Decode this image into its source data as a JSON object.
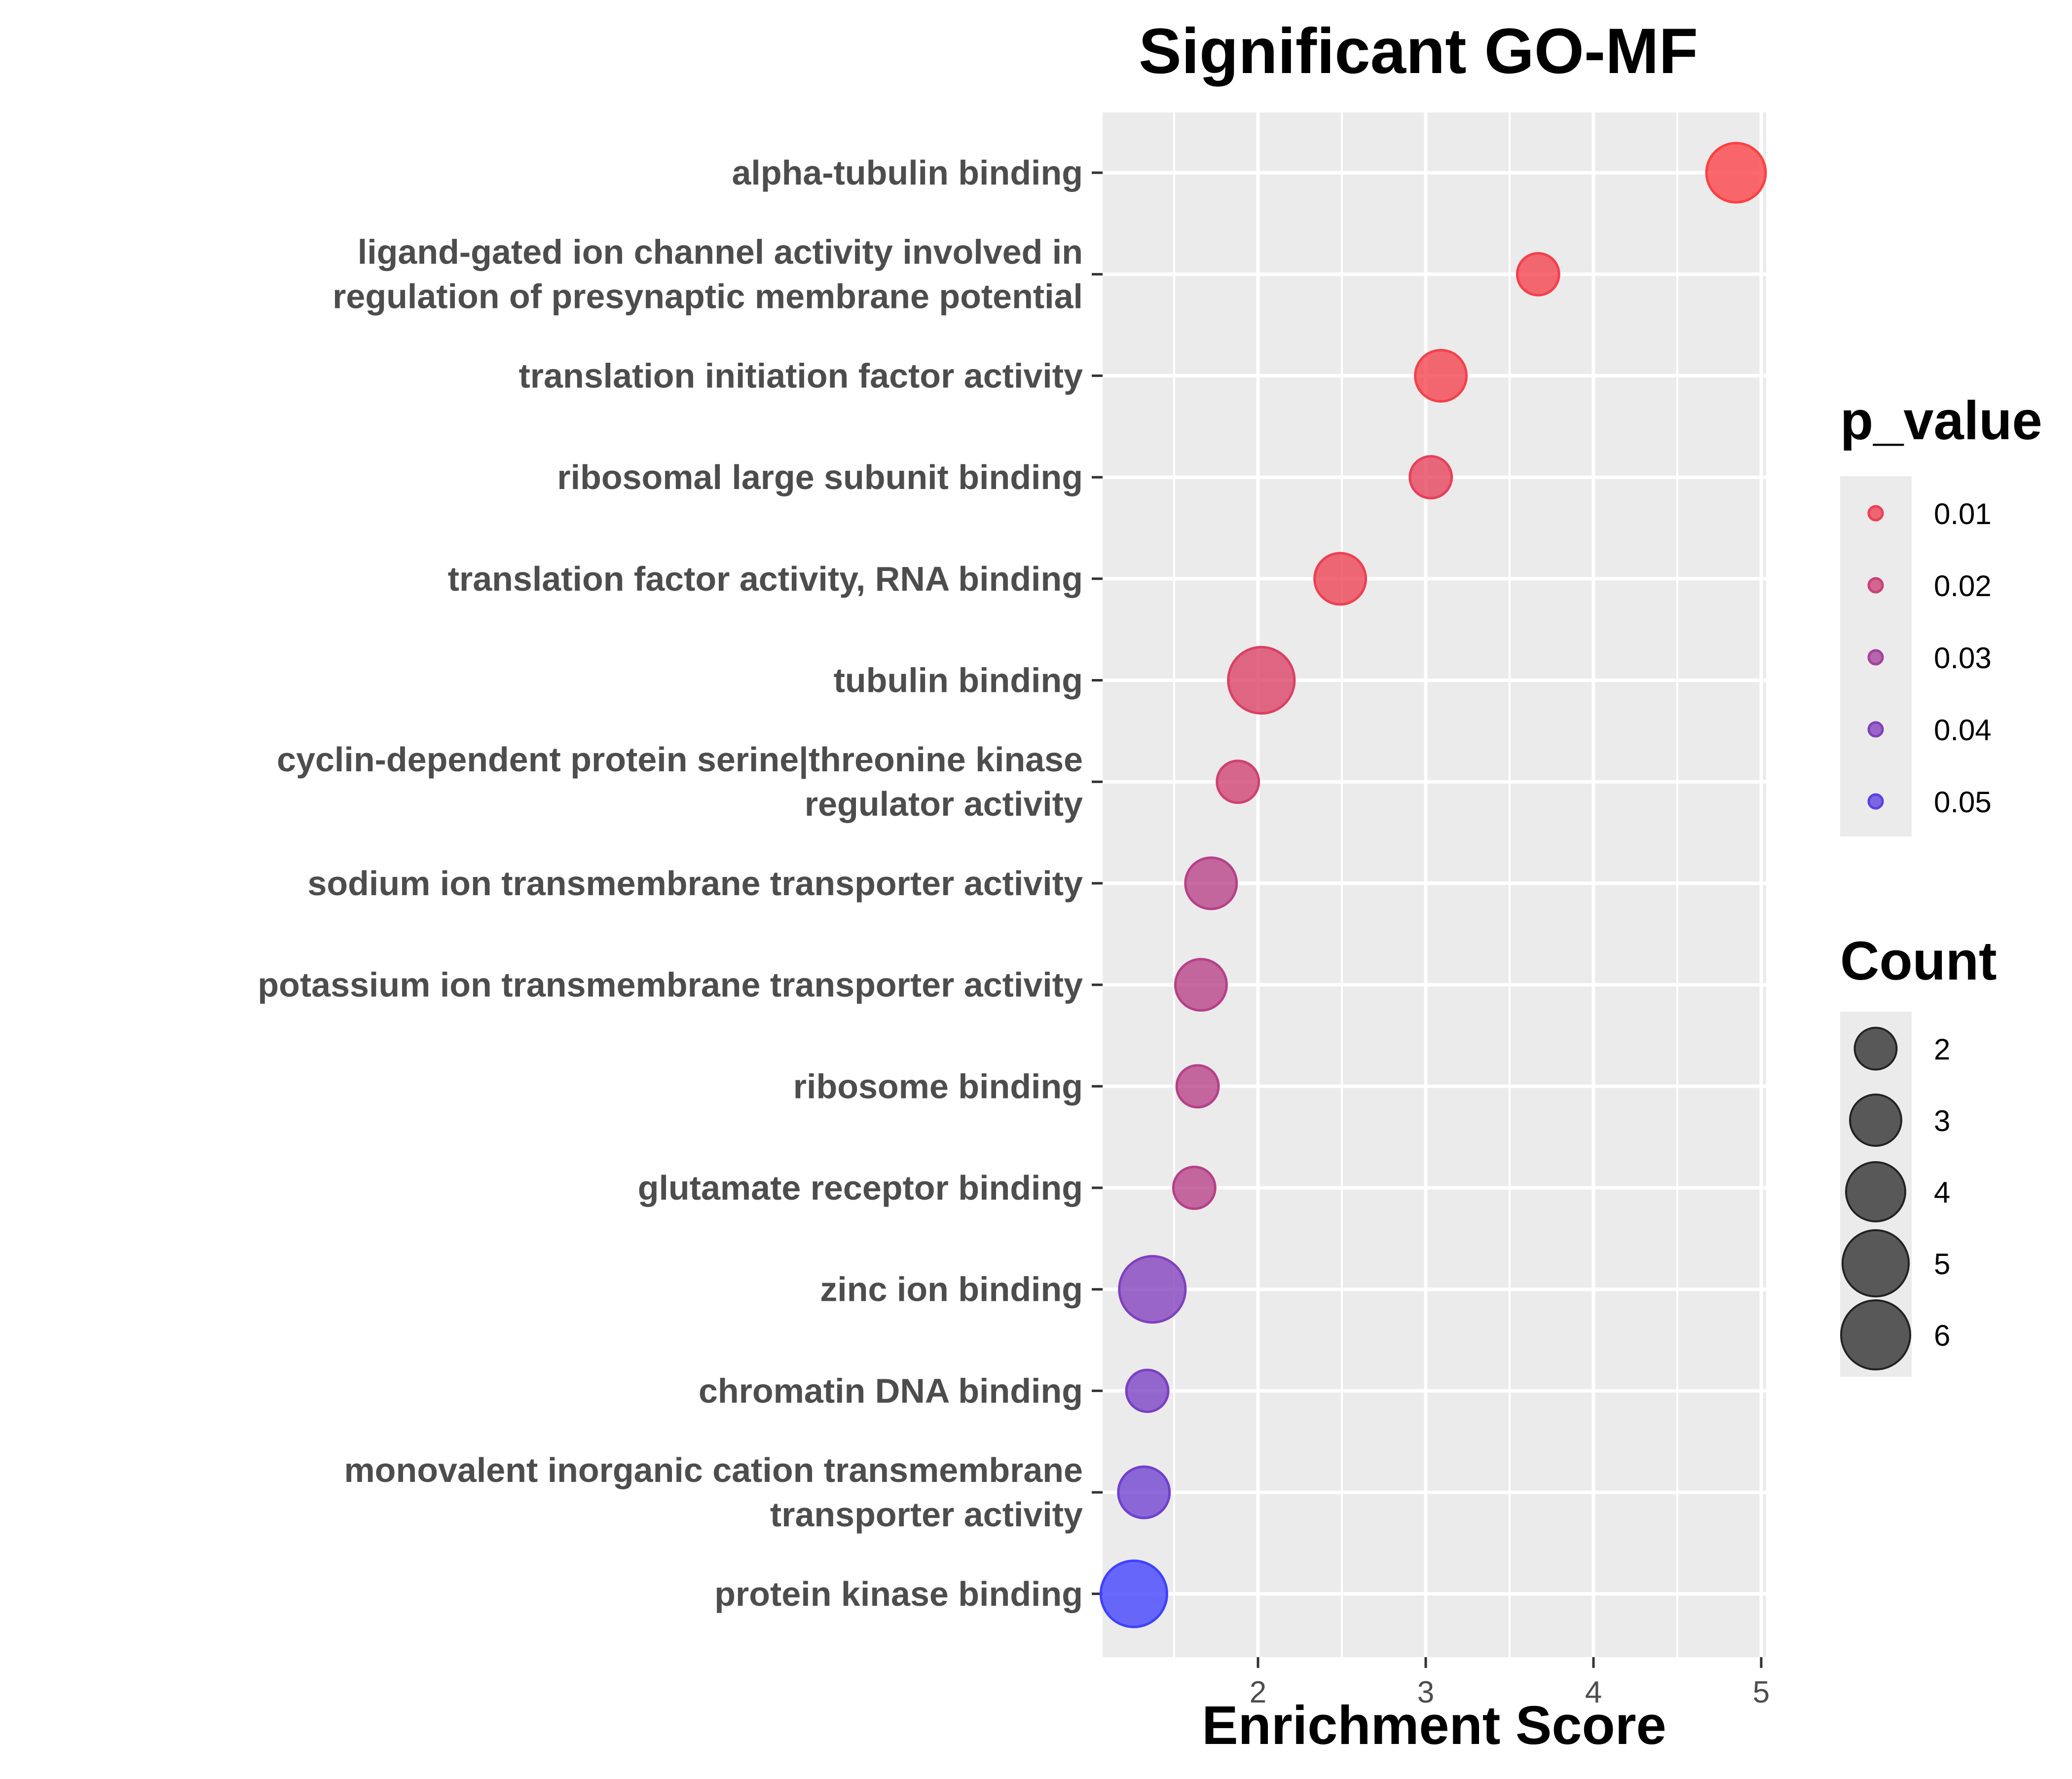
{
  "chart_data": {
    "type": "scatter",
    "title": "Significant GO-MF",
    "xlabel": "Enrichment Score",
    "ylabel": "",
    "xlim": [
      1.1,
      5.05
    ],
    "xticks": [
      2,
      3,
      4,
      5
    ],
    "grid": true,
    "legend_position": "right",
    "color_scale": {
      "low": "#ff4040",
      "high": "#4040ff"
    },
    "categories": [
      [
        "alpha-tubulin binding"
      ],
      [
        "ligand-gated ion channel activity involved in",
        "regulation of presynaptic membrane potential"
      ],
      [
        "translation initiation factor activity"
      ],
      [
        "ribosomal large subunit binding"
      ],
      [
        "translation factor activity, RNA binding"
      ],
      [
        "tubulin binding"
      ],
      [
        "cyclin-dependent protein serine|threonine kinase",
        "regulator activity"
      ],
      [
        "sodium ion transmembrane transporter activity"
      ],
      [
        "potassium ion transmembrane transporter activity"
      ],
      [
        "ribosome binding"
      ],
      [
        "glutamate receptor binding"
      ],
      [
        "zinc ion binding"
      ],
      [
        "chromatin DNA binding"
      ],
      [
        "monovalent inorganic cation transmembrane",
        "transporter activity"
      ],
      [
        "protein kinase binding"
      ]
    ],
    "points": [
      {
        "x": 4.85,
        "count": 4,
        "p_value": 0.006
      },
      {
        "x": 3.67,
        "count": 2,
        "p_value": 0.008
      },
      {
        "x": 3.09,
        "count": 3,
        "p_value": 0.008
      },
      {
        "x": 3.03,
        "count": 2,
        "p_value": 0.012
      },
      {
        "x": 2.49,
        "count": 3,
        "p_value": 0.01
      },
      {
        "x": 2.02,
        "count": 5,
        "p_value": 0.015
      },
      {
        "x": 1.88,
        "count": 2,
        "p_value": 0.018
      },
      {
        "x": 1.72,
        "count": 3,
        "p_value": 0.025
      },
      {
        "x": 1.66,
        "count": 3,
        "p_value": 0.025
      },
      {
        "x": 1.64,
        "count": 2,
        "p_value": 0.025
      },
      {
        "x": 1.62,
        "count": 2,
        "p_value": 0.025
      },
      {
        "x": 1.37,
        "count": 5,
        "p_value": 0.04
      },
      {
        "x": 1.34,
        "count": 2,
        "p_value": 0.042
      },
      {
        "x": 1.32,
        "count": 3,
        "p_value": 0.045
      },
      {
        "x": 1.26,
        "count": 5,
        "p_value": 0.058
      }
    ],
    "legend_color": {
      "title": "p_value",
      "values": [
        0.01,
        0.02,
        0.03,
        0.04,
        0.05
      ],
      "labels": [
        "0.01",
        "0.02",
        "0.03",
        "0.04",
        "0.05"
      ]
    },
    "legend_size": {
      "title": "Count",
      "values": [
        2,
        3,
        4,
        5,
        6
      ],
      "labels": [
        "2",
        "3",
        "4",
        "5",
        "6"
      ]
    }
  }
}
